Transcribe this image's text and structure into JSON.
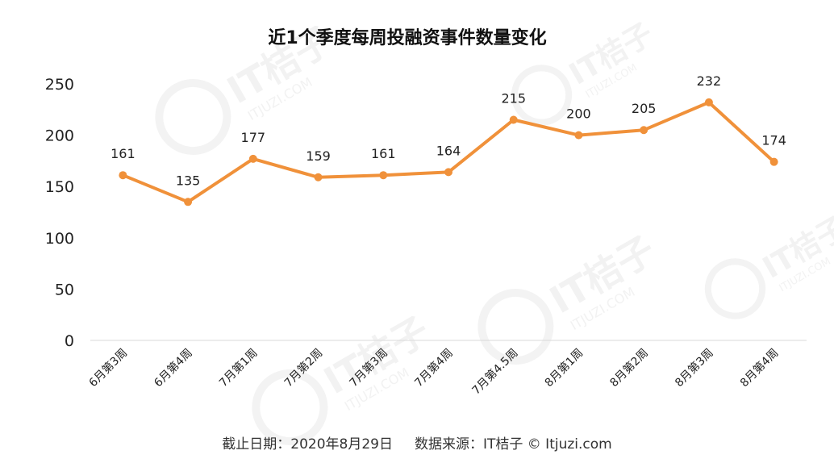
{
  "watermark": {
    "brand": "IT桔子",
    "domain": "ITJUZI.COM"
  },
  "chart_data": {
    "type": "line",
    "title": "近1个季度每周投融资事件数量变化",
    "categories": [
      "6月第3周",
      "6月第4周",
      "7月第1周",
      "7月第2周",
      "7月第3周",
      "7月第4周",
      "7月第4.5周",
      "8月第1周",
      "8月第2周",
      "8月第3周",
      "8月第4周"
    ],
    "series": [
      {
        "values": [
          161,
          135,
          177,
          159,
          161,
          164,
          215,
          200,
          205,
          232,
          174
        ]
      }
    ],
    "xlabel": "",
    "ylabel": "",
    "ylim": [
      0,
      250
    ],
    "yticks": [
      "0",
      "50",
      "100",
      "150",
      "200",
      "250"
    ],
    "data_labels": true,
    "grid": false,
    "legend": "none",
    "color": "#f0913a",
    "footer": "截止日期：2020年8月29日     数据来源：IT桔子 © Itjuzi.com"
  }
}
